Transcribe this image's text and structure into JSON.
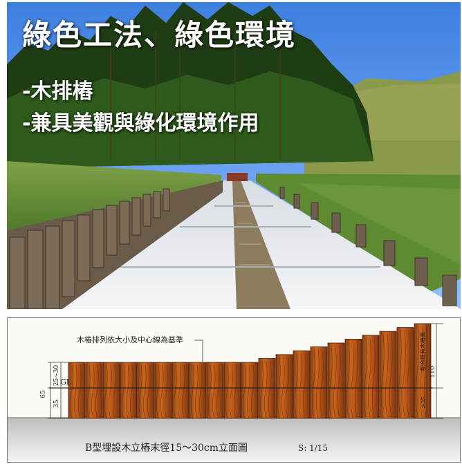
{
  "slide": {
    "title": "綠色工法、綠色環境",
    "bullets": [
      "-木排樁",
      "-兼具美觀與綠化環境作用"
    ]
  },
  "drawing": {
    "note": "木樁排列依大小及中心線為基準",
    "right_note": "配合既有木樁高",
    "gl_label": "GL",
    "dim_65": "65",
    "dim_25_30": "25~30",
    "dim_35": "35",
    "dim_110": "110",
    "dim_ge35": "≥35",
    "caption": "B型埋設木立樁末徑15～30cm立面圖",
    "scale": "S: 1/15"
  }
}
